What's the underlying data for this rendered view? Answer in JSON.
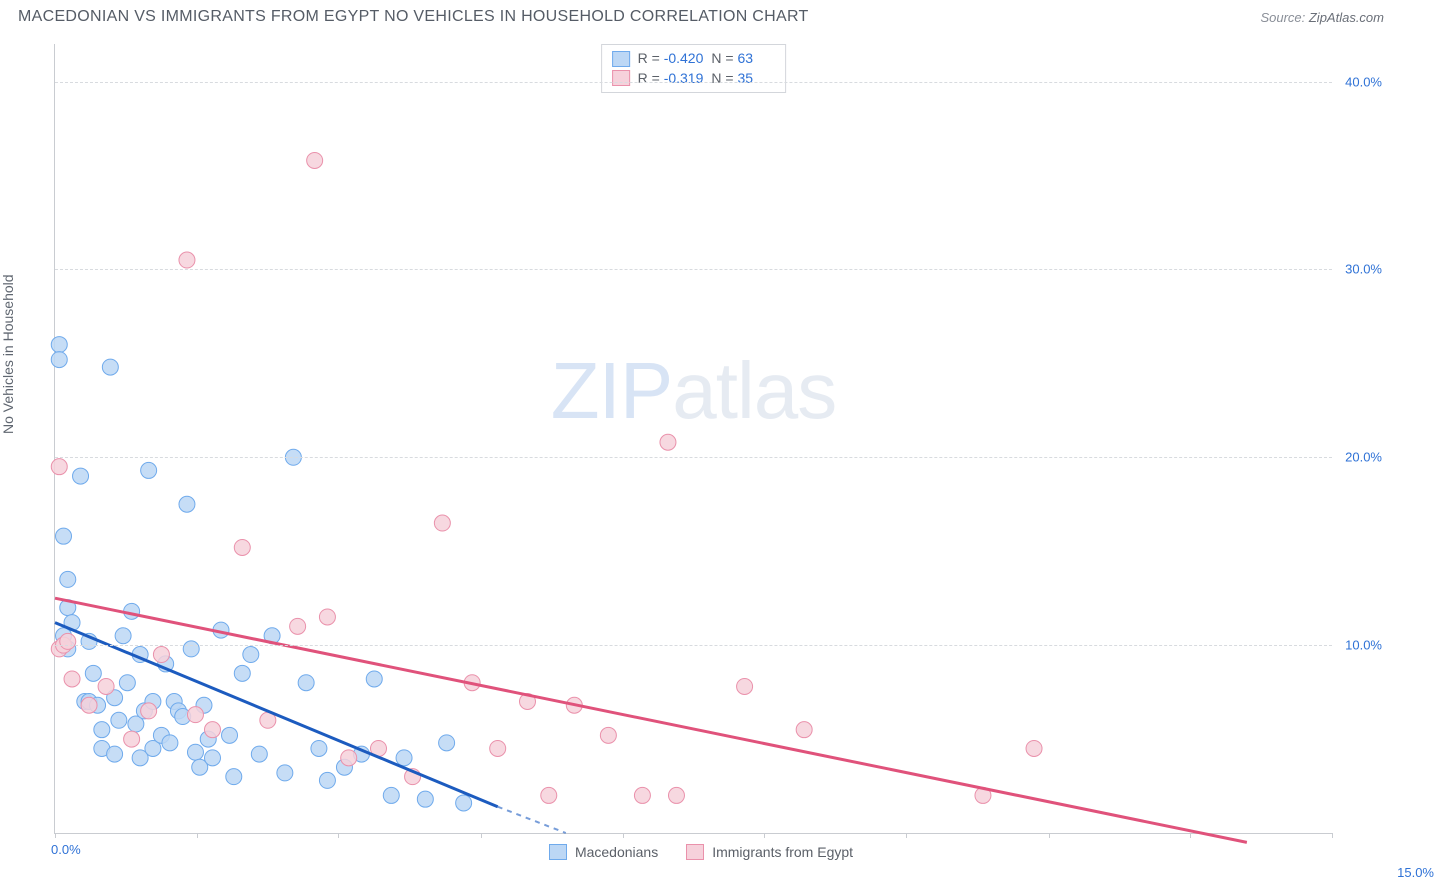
{
  "title": "MACEDONIAN VS IMMIGRANTS FROM EGYPT NO VEHICLES IN HOUSEHOLD CORRELATION CHART",
  "source_prefix": "Source: ",
  "source_name": "ZipAtlas.com",
  "watermark": {
    "left": "ZIP",
    "right": "atlas"
  },
  "y_axis_title": "No Vehicles in Household",
  "x_axis": {
    "min": 0,
    "max": 15,
    "ticks": [
      0,
      1.67,
      3.33,
      5,
      6.67,
      8.33,
      10,
      11.67,
      13.33,
      15
    ],
    "label_left": "0.0%",
    "label_right": "15.0%"
  },
  "y_axis": {
    "min": 0,
    "max": 42,
    "grid": [
      {
        "v": 10,
        "label": "10.0%"
      },
      {
        "v": 20,
        "label": "20.0%"
      },
      {
        "v": 30,
        "label": "30.0%"
      },
      {
        "v": 40,
        "label": "40.0%"
      }
    ]
  },
  "series": [
    {
      "id": "macedonians",
      "label": "Macedonians",
      "color_fill": "#bcd7f5",
      "color_stroke": "#6faaec",
      "trend_color": "#1c5bbf",
      "stats": {
        "R": "-0.420",
        "N": "63"
      },
      "trend": {
        "x1": 0,
        "y1": 11.2,
        "x2": 5.2,
        "y2": 1.4,
        "ext_x2": 6.0,
        "ext_y2": 0
      },
      "points": [
        [
          0.05,
          26.0
        ],
        [
          0.05,
          25.2
        ],
        [
          0.1,
          10.5
        ],
        [
          0.1,
          15.8
        ],
        [
          0.15,
          9.8
        ],
        [
          0.15,
          12.0
        ],
        [
          0.15,
          13.5
        ],
        [
          0.2,
          11.2
        ],
        [
          0.3,
          19.0
        ],
        [
          0.35,
          7.0
        ],
        [
          0.4,
          10.2
        ],
        [
          0.4,
          7.0
        ],
        [
          0.45,
          8.5
        ],
        [
          0.5,
          6.8
        ],
        [
          0.55,
          5.5
        ],
        [
          0.55,
          4.5
        ],
        [
          0.65,
          24.8
        ],
        [
          0.7,
          4.2
        ],
        [
          0.7,
          7.2
        ],
        [
          0.75,
          6.0
        ],
        [
          0.8,
          10.5
        ],
        [
          0.85,
          8.0
        ],
        [
          0.9,
          11.8
        ],
        [
          0.95,
          5.8
        ],
        [
          1.0,
          9.5
        ],
        [
          1.0,
          4.0
        ],
        [
          1.05,
          6.5
        ],
        [
          1.1,
          19.3
        ],
        [
          1.15,
          7.0
        ],
        [
          1.15,
          4.5
        ],
        [
          1.25,
          5.2
        ],
        [
          1.3,
          9.0
        ],
        [
          1.35,
          4.8
        ],
        [
          1.4,
          7.0
        ],
        [
          1.45,
          6.5
        ],
        [
          1.5,
          6.2
        ],
        [
          1.55,
          17.5
        ],
        [
          1.6,
          9.8
        ],
        [
          1.65,
          4.3
        ],
        [
          1.7,
          3.5
        ],
        [
          1.75,
          6.8
        ],
        [
          1.8,
          5.0
        ],
        [
          1.85,
          4.0
        ],
        [
          1.95,
          10.8
        ],
        [
          2.05,
          5.2
        ],
        [
          2.1,
          3.0
        ],
        [
          2.2,
          8.5
        ],
        [
          2.3,
          9.5
        ],
        [
          2.4,
          4.2
        ],
        [
          2.55,
          10.5
        ],
        [
          2.7,
          3.2
        ],
        [
          2.8,
          20.0
        ],
        [
          2.95,
          8.0
        ],
        [
          3.1,
          4.5
        ],
        [
          3.2,
          2.8
        ],
        [
          3.4,
          3.5
        ],
        [
          3.6,
          4.2
        ],
        [
          3.75,
          8.2
        ],
        [
          3.95,
          2.0
        ],
        [
          4.1,
          4.0
        ],
        [
          4.35,
          1.8
        ],
        [
          4.6,
          4.8
        ],
        [
          4.8,
          1.6
        ]
      ]
    },
    {
      "id": "egypt",
      "label": "Immigrants from Egypt",
      "color_fill": "#f6d1db",
      "color_stroke": "#ea91ab",
      "trend_color": "#e0527b",
      "stats": {
        "R": "-0.319",
        "N": "35"
      },
      "trend": {
        "x1": 0,
        "y1": 12.5,
        "x2": 14.0,
        "y2": -0.5,
        "ext_x2": 14.0,
        "ext_y2": -0.5
      },
      "points": [
        [
          0.05,
          9.8
        ],
        [
          0.05,
          19.5
        ],
        [
          0.1,
          10.0
        ],
        [
          0.15,
          10.2
        ],
        [
          0.2,
          8.2
        ],
        [
          0.4,
          6.8
        ],
        [
          0.6,
          7.8
        ],
        [
          0.9,
          5.0
        ],
        [
          1.1,
          6.5
        ],
        [
          1.25,
          9.5
        ],
        [
          1.55,
          30.5
        ],
        [
          1.65,
          6.3
        ],
        [
          1.85,
          5.5
        ],
        [
          2.2,
          15.2
        ],
        [
          2.5,
          6.0
        ],
        [
          2.85,
          11.0
        ],
        [
          3.05,
          35.8
        ],
        [
          3.2,
          11.5
        ],
        [
          3.45,
          4.0
        ],
        [
          3.8,
          4.5
        ],
        [
          4.2,
          3.0
        ],
        [
          4.55,
          16.5
        ],
        [
          4.9,
          8.0
        ],
        [
          5.2,
          4.5
        ],
        [
          5.55,
          7.0
        ],
        [
          5.8,
          2.0
        ],
        [
          6.1,
          6.8
        ],
        [
          6.5,
          5.2
        ],
        [
          6.9,
          2.0
        ],
        [
          7.2,
          20.8
        ],
        [
          7.3,
          2.0
        ],
        [
          8.1,
          7.8
        ],
        [
          8.8,
          5.5
        ],
        [
          10.9,
          2.0
        ],
        [
          11.5,
          4.5
        ]
      ]
    }
  ],
  "marker_radius": 8,
  "legend_swatch_border": "#888888"
}
